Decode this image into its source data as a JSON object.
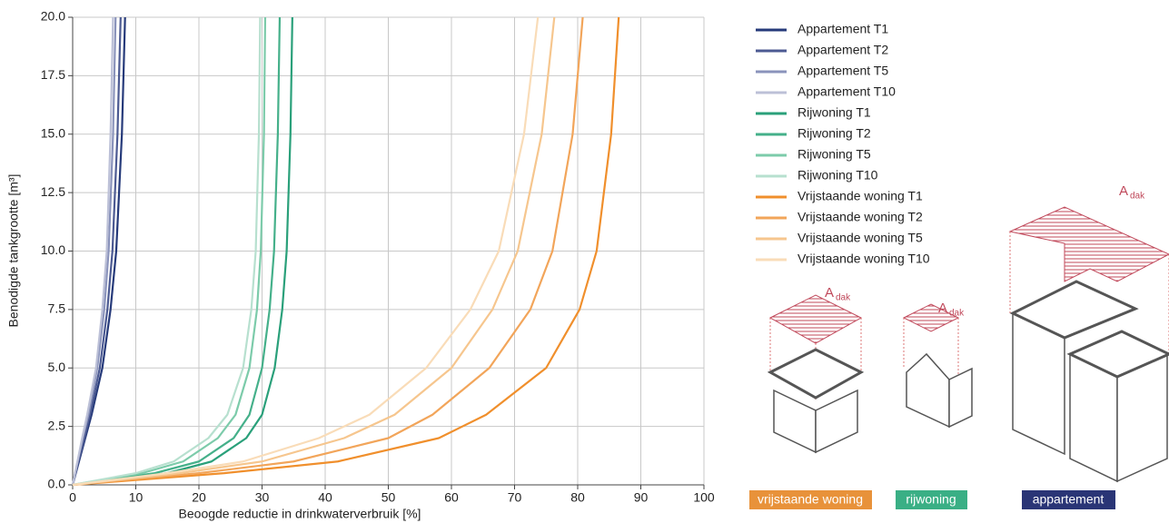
{
  "chart_data": {
    "type": "line",
    "xlabel": "Beoogde reductie in drinkwaterverbruik [%]",
    "ylabel": "Benodigde tankgrootte [m³]",
    "xlim": [
      0,
      100
    ],
    "ylim": [
      0,
      20
    ],
    "xticks": [
      0,
      10,
      20,
      30,
      40,
      50,
      60,
      70,
      80,
      90,
      100
    ],
    "yticks": [
      {
        "value": 0,
        "label": "0.0"
      },
      2.5,
      {
        "value": 5,
        "label": "5.0"
      },
      7.5,
      {
        "value": 10,
        "label": "10.0"
      },
      12.5,
      {
        "value": 15,
        "label": "15.0"
      },
      17.5,
      {
        "value": 20,
        "label": "20.0"
      }
    ],
    "grid": true,
    "legend": "right",
    "series": [
      {
        "name": "Appartement T1",
        "color": "#263a7a",
        "x": [
          0,
          0.5,
          1,
          2,
          3,
          4.7,
          6,
          6.9,
          7.8,
          8.3
        ],
        "values": [
          0,
          0.5,
          1,
          2,
          3,
          5,
          7.5,
          10,
          15,
          20
        ]
      },
      {
        "name": "Appartement T2",
        "color": "#4c5a92",
        "x": [
          0,
          0.45,
          0.9,
          1.85,
          2.75,
          4.3,
          5.5,
          6.3,
          7.1,
          7.6
        ],
        "values": [
          0,
          0.5,
          1,
          2,
          3,
          5,
          7.5,
          10,
          15,
          20
        ]
      },
      {
        "name": "Appartement T5",
        "color": "#8a93bb",
        "x": [
          0,
          0.4,
          0.8,
          1.6,
          2.5,
          3.9,
          5,
          5.7,
          6.4,
          6.8
        ],
        "values": [
          0,
          0.5,
          1,
          2,
          3,
          5,
          7.5,
          10,
          15,
          20
        ]
      },
      {
        "name": "Appartement T10",
        "color": "#bcc0d7",
        "x": [
          0,
          0.38,
          0.76,
          1.5,
          2.3,
          3.7,
          4.7,
          5.4,
          6,
          6.4
        ],
        "values": [
          0,
          0.5,
          1,
          2,
          3,
          5,
          7.5,
          10,
          15,
          20
        ]
      },
      {
        "name": "Rijwoning T1",
        "color": "#2aa07a",
        "x": [
          0,
          15,
          22,
          27.5,
          30,
          32,
          33.2,
          33.9,
          34.5,
          34.8
        ],
        "values": [
          0,
          0.5,
          1,
          2,
          3,
          5,
          7.5,
          10,
          15,
          20
        ]
      },
      {
        "name": "Rijwoning T2",
        "color": "#45b08a",
        "x": [
          0,
          13,
          20,
          25.5,
          28,
          30,
          31.2,
          31.9,
          32.5,
          32.8
        ],
        "values": [
          0,
          0.5,
          1,
          2,
          3,
          5,
          7.5,
          10,
          15,
          20
        ]
      },
      {
        "name": "Rijwoning T5",
        "color": "#7ccbaa",
        "x": [
          0,
          11,
          17.5,
          23,
          25.8,
          28,
          29.2,
          29.8,
          30.3,
          30.5
        ],
        "values": [
          0,
          0.5,
          1,
          2,
          3,
          5,
          7.5,
          10,
          15,
          20
        ]
      },
      {
        "name": "Rijwoning T10",
        "color": "#b7e0cf",
        "x": [
          0,
          10,
          16,
          21.5,
          24.5,
          27,
          28.3,
          29,
          29.5,
          29.7
        ],
        "values": [
          0,
          0.5,
          1,
          2,
          3,
          5,
          7.5,
          10,
          15,
          20
        ]
      },
      {
        "name": "Vrijstaande woning T1",
        "color": "#f08f2c",
        "x": [
          0,
          24,
          42,
          58,
          65.5,
          75,
          80.3,
          83,
          85.3,
          86.5
        ],
        "values": [
          0,
          0.5,
          1,
          2,
          3,
          5,
          7.5,
          10,
          15,
          20
        ]
      },
      {
        "name": "Vrijstaande woning T2",
        "color": "#f2a55a",
        "x": [
          0,
          20,
          35,
          50,
          57,
          66,
          72.5,
          76,
          79.2,
          80.8
        ],
        "values": [
          0,
          0.5,
          1,
          2,
          3,
          5,
          7.5,
          10,
          15,
          20
        ]
      },
      {
        "name": "Vrijstaande woning T5",
        "color": "#f6c68e",
        "x": [
          0,
          17,
          30,
          43,
          51,
          60,
          66.5,
          70.5,
          74.3,
          76.3
        ],
        "values": [
          0,
          0.5,
          1,
          2,
          3,
          5,
          7.5,
          10,
          15,
          20
        ]
      },
      {
        "name": "Vrijstaande woning T10",
        "color": "#f9dcb8",
        "x": [
          0,
          15,
          27,
          39,
          47,
          56,
          63,
          67.5,
          71.5,
          73.7
        ],
        "values": [
          0,
          0.5,
          1,
          2,
          3,
          5,
          7.5,
          10,
          15,
          20
        ]
      }
    ]
  },
  "illustrations": {
    "roof_symbol": "A",
    "roof_subscript": "dak",
    "labels": [
      "vrijstaande woning",
      "rijwoning",
      "appartement"
    ]
  }
}
